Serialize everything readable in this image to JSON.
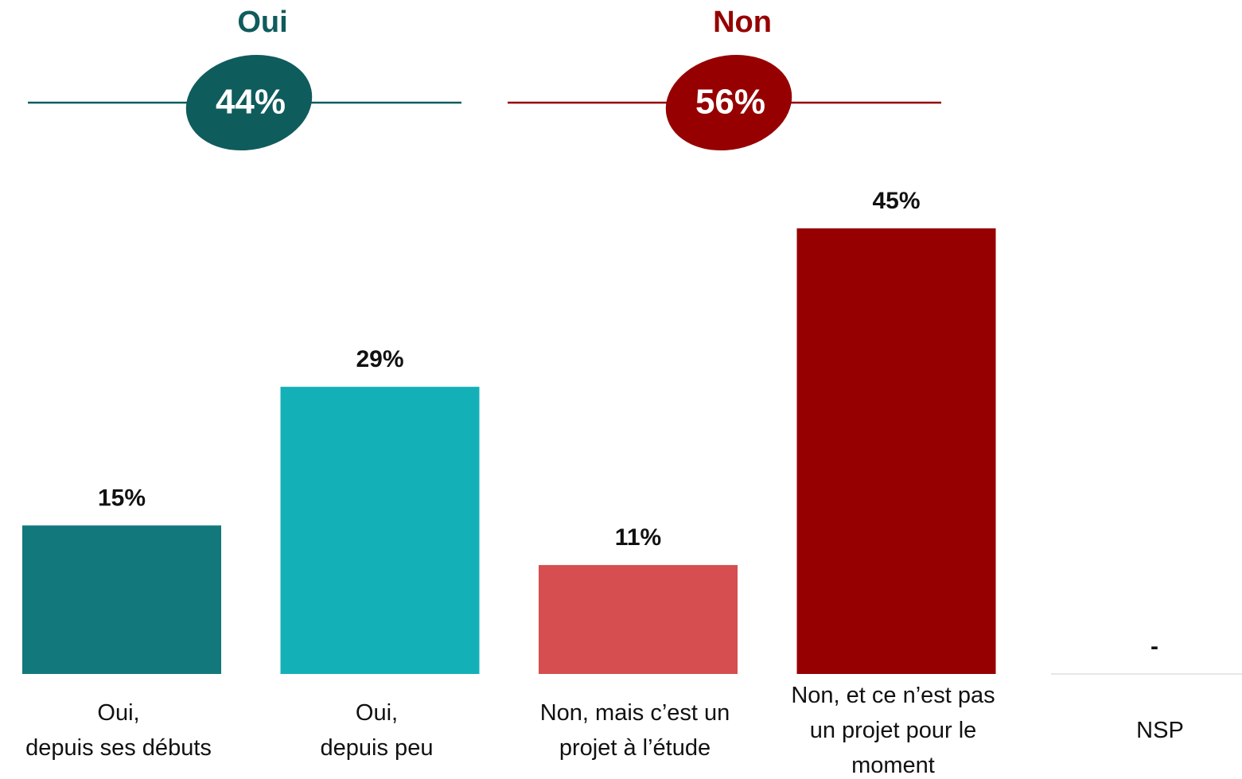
{
  "chart_data": {
    "type": "bar",
    "groups": [
      {
        "name": "Oui",
        "value": 44,
        "label": "44%",
        "color": "#0f5c5d"
      },
      {
        "name": "Non",
        "value": 56,
        "label": "56%",
        "color": "#960000"
      }
    ],
    "categories": [
      "Oui,\ndepuis ses débuts",
      "Oui,\ndepuis peu",
      "Non, mais c’est un\nprojet à l’étude",
      "Non, et ce n’est pas\nun projet pour le\nmoment",
      "NSP"
    ],
    "values": [
      15,
      29,
      11,
      45,
      null
    ],
    "value_labels": [
      "15%",
      "29%",
      "11%",
      "45%",
      "-"
    ],
    "colors": [
      "#12787b",
      "#14b0b8",
      "#d64e4f",
      "#960000",
      "#cccccc"
    ]
  }
}
